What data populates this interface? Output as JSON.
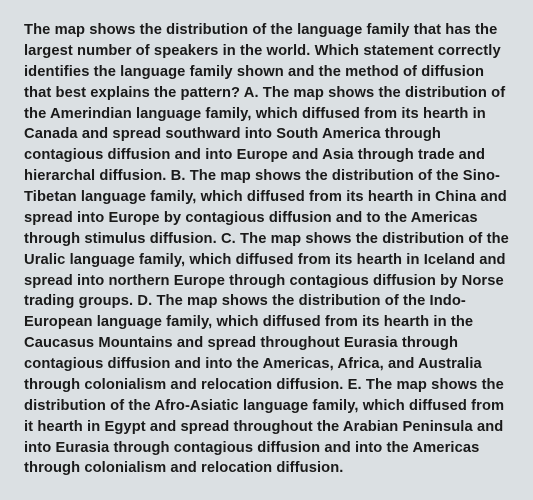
{
  "card": {
    "background_color": "#dbe0e3",
    "text_color": "#1a1a1a",
    "font_size": 14.7,
    "line_height": 1.42,
    "font_weight": 600,
    "question_text": "The map shows the distribution of the language family that has the largest number of speakers in the world. Which statement correctly identifies the language family shown and the method of diffusion that best explains the pattern? A. The map shows the distribution of the Amerindian language family, which diffused from its hearth in Canada and spread southward into South America through contagious diffusion and into Europe and Asia through trade and hierarchal diffusion. B. The map shows the distribution of the Sino-Tibetan language family, which diffused from its hearth in China and spread into Europe by contagious diffusion and to the Americas through stimulus diffusion. C. The map shows the distribution of the Uralic language family, which diffused from its hearth in Iceland and spread into northern Europe through contagious diffusion by Norse trading groups. D. The map shows the distribution of the Indo-European language family, which diffused from its hearth in the Caucasus Mountains and spread throughout Eurasia through contagious diffusion and into the Americas, Africa, and Australia through colonialism and relocation diffusion. E. The map shows the distribution of the Afro-Asiatic language family, which diffused from it hearth in Egypt and spread throughout the Arabian Peninsula and into Eurasia through contagious diffusion and into the Americas through colonialism and relocation diffusion."
  }
}
